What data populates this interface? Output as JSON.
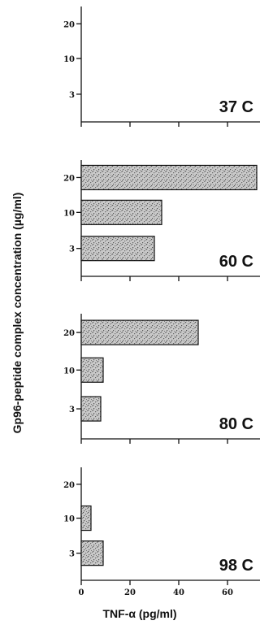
{
  "chart_data": [
    {
      "type": "bar",
      "orientation": "horizontal",
      "panel_label": "37 C",
      "categories": [
        "20",
        "10",
        "3"
      ],
      "values": [
        0,
        0,
        0
      ],
      "xlim": [
        0,
        80
      ],
      "grid": false
    },
    {
      "type": "bar",
      "orientation": "horizontal",
      "panel_label": "60 C",
      "categories": [
        "20",
        "10",
        "3"
      ],
      "values": [
        72,
        33,
        30
      ],
      "xlim": [
        0,
        80
      ],
      "grid": false
    },
    {
      "type": "bar",
      "orientation": "horizontal",
      "panel_label": "80 C",
      "categories": [
        "20",
        "10",
        "3"
      ],
      "values": [
        48,
        9,
        8
      ],
      "xlim": [
        0,
        80
      ],
      "grid": false
    },
    {
      "type": "bar",
      "orientation": "horizontal",
      "panel_label": "98 C",
      "categories": [
        "20",
        "10",
        "3"
      ],
      "values": [
        0,
        4,
        9
      ],
      "xlim": [
        0,
        80
      ],
      "xticks": [
        "0",
        "20",
        "40",
        "60"
      ],
      "grid": false
    }
  ],
  "ylabel": "Gp96-peptide complex concentration (µg/ml)",
  "xlabel": "TNF-α (pg/ml)",
  "colors": {
    "bar_fill": "#c9c9c9",
    "bar_texture": "#555555",
    "axis": "#111111"
  }
}
